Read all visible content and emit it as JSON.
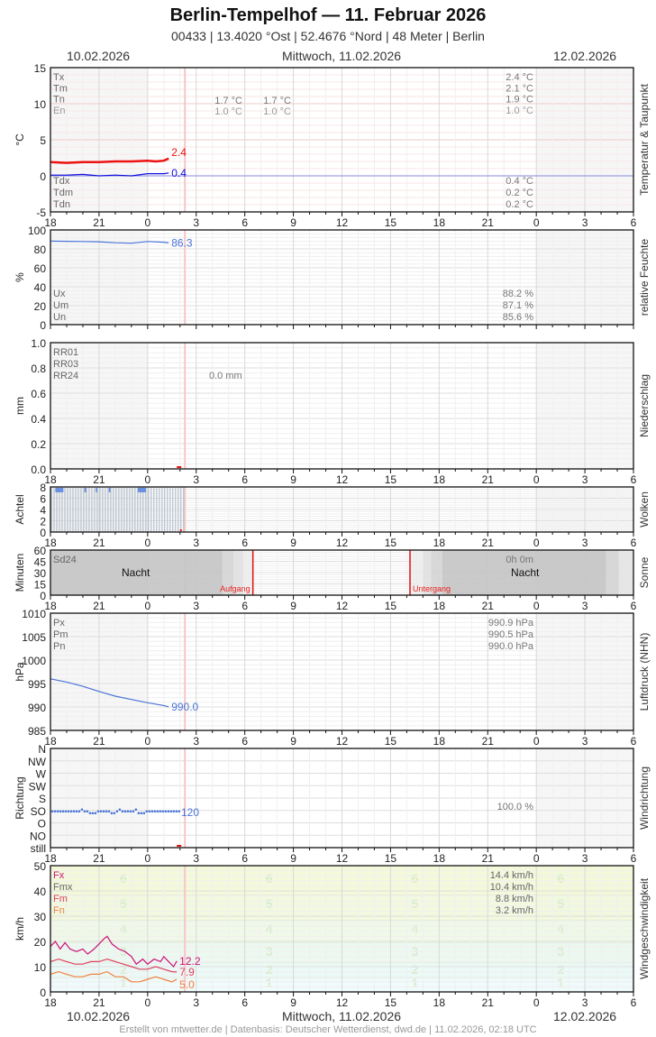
{
  "header": {
    "title": "Berlin-Tempelhof  —  11. Februar 2026",
    "subtitle": "00433  |  13.4020 °Ost  |  52.4676 °Nord  |  48 Meter  |  Berlin"
  },
  "date_labels": {
    "left": "10.02.2026",
    "center": "Mittwoch, 11.02.2026",
    "right": "12.02.2026"
  },
  "x_ticks": [
    "18",
    "21",
    "0",
    "3",
    "6",
    "9",
    "12",
    "15",
    "18",
    "21",
    "0",
    "3",
    "6"
  ],
  "footer": "Erstellt von mtwetter.de | Datenbasis: Deutscher Wetterdienst, dwd.de | 11.02.2026, 02:18 UTC",
  "colors": {
    "temp": "#ee1111",
    "dewpoint": "#1111dd",
    "blue_series": "#4a74d9",
    "now_line": "#f6c6c6",
    "gust": "#cc1177",
    "wind_mean": "#e04060",
    "wind_min": "#f08040"
  },
  "chart_data": [
    {
      "type": "line",
      "title": "Temperatur & Taupunkt",
      "ylabel": "°C",
      "ylim": [
        -5,
        15
      ],
      "yticks": [
        "15",
        "10",
        "5",
        "0",
        "-5"
      ],
      "x_range_hours": "18:00 10.02 – 06:00 12.02",
      "series": [
        {
          "name": "Temperatur",
          "color": "#ee1111",
          "last_value": "2.4",
          "points": [
            [
              0,
              1.9
            ],
            [
              1,
              1.8
            ],
            [
              2,
              1.9
            ],
            [
              3,
              1.9
            ],
            [
              4,
              2.0
            ],
            [
              5,
              2.0
            ],
            [
              6,
              2.1
            ],
            [
              6.5,
              2.0
            ],
            [
              7,
              2.1
            ],
            [
              7.3,
              2.4
            ]
          ]
        },
        {
          "name": "Taupunkt",
          "color": "#1111dd",
          "last_value": "0.4",
          "points": [
            [
              0,
              0.1
            ],
            [
              1,
              0.1
            ],
            [
              2,
              0.2
            ],
            [
              3,
              0.0
            ],
            [
              4,
              0.1
            ],
            [
              5,
              0.0
            ],
            [
              6,
              0.3
            ],
            [
              7,
              0.3
            ],
            [
              7.3,
              0.4
            ]
          ]
        }
      ],
      "legend_top": [
        "Tx",
        "Tm",
        "Tn",
        "En"
      ],
      "legend_bottom": [
        "Tdx",
        "Tdm",
        "Tdn"
      ],
      "day1_values": {
        "Tn": "1.7 °C",
        "En": "1.0 °C"
      },
      "day1b_values": {
        "Tn": "1.7 °C",
        "En": "1.0 °C"
      },
      "stats_top": [
        "2.4 °C",
        "2.1 °C",
        "1.9 °C",
        "1.0 °C"
      ],
      "stats_bottom": [
        "0.4 °C",
        "0.2 °C",
        "0.2 °C"
      ]
    },
    {
      "type": "line",
      "title": "relative Feuchte",
      "ylabel": "%",
      "ylim": [
        0,
        100
      ],
      "yticks": [
        "100",
        "80",
        "60",
        "40",
        "20",
        "0"
      ],
      "series": [
        {
          "name": "Feuchte",
          "color": "#4a74d9",
          "last_value": "86.3",
          "points": [
            [
              0,
              88.2
            ],
            [
              1,
              88
            ],
            [
              2,
              87.8
            ],
            [
              3,
              87.5
            ],
            [
              4,
              86.5
            ],
            [
              5,
              86.0
            ],
            [
              6,
              87.8
            ],
            [
              7,
              87.0
            ],
            [
              7.3,
              86.3
            ]
          ]
        }
      ],
      "legend": [
        "Ux",
        "Um",
        "Un"
      ],
      "stats": [
        "88.2 %",
        "87.1 %",
        "85.6 %"
      ]
    },
    {
      "type": "bar",
      "title": "Niederschlag",
      "ylabel": "mm",
      "ylim": [
        0,
        1.0
      ],
      "yticks": [
        "1.0",
        "0.8",
        "0.6",
        "0.4",
        "0.2",
        "0.0"
      ],
      "legend": [
        "RR01",
        "RR03",
        "RR24"
      ],
      "value": "0.0 mm"
    },
    {
      "type": "bar",
      "title": "Wolken",
      "ylabel": "Achtel",
      "ylim": [
        0,
        8
      ],
      "yticks": [
        "8",
        "6",
        "4",
        "2",
        "0"
      ],
      "cover_hours": 8.0
    },
    {
      "type": "area",
      "title": "Sonne",
      "ylabel": "Minuten",
      "ylim": [
        0,
        60
      ],
      "yticks": [
        "60",
        "45",
        "30",
        "15",
        "0"
      ],
      "legend": "Sd24",
      "sunshine_total": "0h 0m",
      "night_label": "Nacht",
      "sunrise_label": "Aufgang",
      "sunset_label": "Untergang",
      "sunrise_hour": 12.5,
      "sunset_hour": 22.2
    },
    {
      "type": "line",
      "title": "Luftdruck (NHN)",
      "ylabel": "hPa",
      "ylim": [
        985,
        1010
      ],
      "yticks": [
        "1010",
        "1005",
        "1000",
        "995",
        "990",
        "985"
      ],
      "series": [
        {
          "name": "Luftdruck",
          "color": "#4a74d9",
          "last_value": "990.0",
          "points": [
            [
              0,
              996.0
            ],
            [
              1,
              995.3
            ],
            [
              2,
              994.4
            ],
            [
              3,
              993.3
            ],
            [
              4,
              992.3
            ],
            [
              5,
              991.6
            ],
            [
              6,
              990.9
            ],
            [
              7,
              990.3
            ],
            [
              7.3,
              990.0
            ]
          ]
        }
      ],
      "legend": [
        "Px",
        "Pm",
        "Pn"
      ],
      "stats": [
        "990.9 hPa",
        "990.5 hPa",
        "990.0 hPa"
      ]
    },
    {
      "type": "scatter",
      "title": "Windrichtung",
      "ylabel": "Richtung",
      "yticks": [
        "N",
        "NW",
        "W",
        "SW",
        "S",
        "SO",
        "O",
        "NO",
        "still"
      ],
      "series": [
        {
          "name": "Richtung",
          "color": "#4a74d9",
          "last_value": "120"
        }
      ],
      "stat": "100.0 %"
    },
    {
      "type": "line",
      "title": "Windgeschwindigkeit",
      "ylabel": "km/h",
      "ylim": [
        0,
        50
      ],
      "yticks": [
        "50",
        "40",
        "30",
        "20",
        "10",
        "0"
      ],
      "beaufort_labels": [
        "6",
        "5",
        "4",
        "3",
        "2",
        "1"
      ],
      "legend": [
        "Fx",
        "Fmx",
        "Fm",
        "Fn"
      ],
      "stats": [
        "14.4 km/h",
        "10.4 km/h",
        "8.8 km/h",
        "3.2 km/h"
      ],
      "series": [
        {
          "name": "Fx",
          "color": "#cc1177",
          "last_value": "12.2",
          "points": [
            [
              0,
              18
            ],
            [
              0.3,
              20
            ],
            [
              0.6,
              17
            ],
            [
              0.9,
              19.5
            ],
            [
              1.2,
              17
            ],
            [
              1.6,
              16
            ],
            [
              2,
              17
            ],
            [
              2.3,
              15
            ],
            [
              2.7,
              17
            ],
            [
              3,
              19
            ],
            [
              3.3,
              21
            ],
            [
              3.5,
              22
            ],
            [
              3.8,
              19
            ],
            [
              4.2,
              17
            ],
            [
              4.6,
              16
            ],
            [
              5,
              14
            ],
            [
              5.3,
              11
            ],
            [
              5.7,
              13
            ],
            [
              6,
              11
            ],
            [
              6.4,
              13
            ],
            [
              6.8,
              12
            ],
            [
              7,
              14
            ],
            [
              7.3,
              12
            ],
            [
              7.6,
              10
            ],
            [
              7.8,
              12.2
            ]
          ]
        },
        {
          "name": "Fm",
          "color": "#e04060",
          "last_value": "7.9",
          "points": [
            [
              0,
              12
            ],
            [
              0.5,
              13
            ],
            [
              1,
              12
            ],
            [
              1.5,
              11
            ],
            [
              2,
              11
            ],
            [
              2.5,
              12
            ],
            [
              3,
              12
            ],
            [
              3.5,
              13
            ],
            [
              4,
              12
            ],
            [
              4.5,
              11
            ],
            [
              5,
              10
            ],
            [
              5.5,
              9
            ],
            [
              6,
              9
            ],
            [
              6.5,
              10
            ],
            [
              7,
              9
            ],
            [
              7.5,
              8
            ],
            [
              7.8,
              7.9
            ]
          ]
        },
        {
          "name": "Fn",
          "color": "#f08040",
          "last_value": "5.0",
          "points": [
            [
              0,
              7
            ],
            [
              0.5,
              8
            ],
            [
              1,
              7
            ],
            [
              1.5,
              6
            ],
            [
              2,
              6
            ],
            [
              2.5,
              7
            ],
            [
              3,
              7
            ],
            [
              3.5,
              8
            ],
            [
              4,
              6
            ],
            [
              4.5,
              6
            ],
            [
              5,
              4
            ],
            [
              5.5,
              4
            ],
            [
              6,
              5
            ],
            [
              6.5,
              6
            ],
            [
              7,
              5
            ],
            [
              7.5,
              4
            ],
            [
              7.8,
              5.0
            ]
          ]
        }
      ]
    }
  ]
}
